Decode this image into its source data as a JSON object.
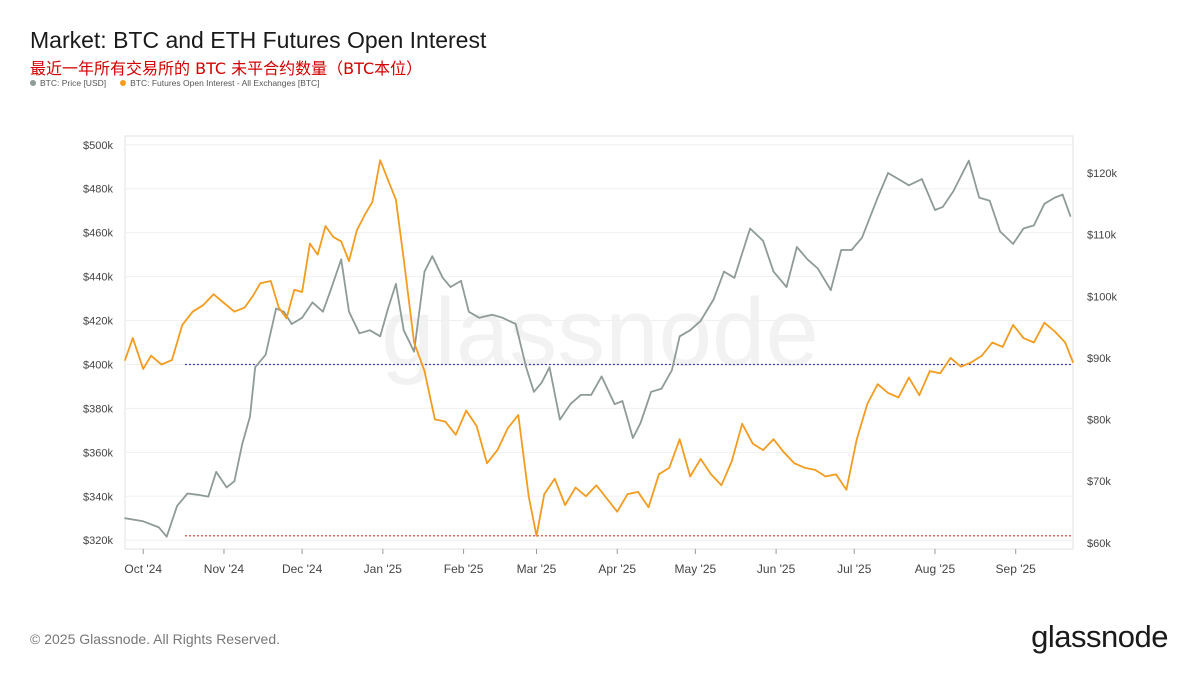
{
  "header": {
    "title": "Market: BTC and ETH Futures Open Interest",
    "subtitle": "最近一年所有交易所的 BTC 未平合约数量（BTC本位）"
  },
  "legend": [
    {
      "label": "BTC: Price [USD]",
      "color": "#8f9b98"
    },
    {
      "label": "BTC: Futures Open Interest - All Exchanges [BTC]",
      "color": "#f39c1f"
    }
  ],
  "footer": {
    "copyright": "© 2025 Glassnode. All Rights Reserved.",
    "logo": "glassnode"
  },
  "watermark": "glassnode",
  "chart_data": {
    "type": "line",
    "x_axis": {
      "ticks": [
        "Oct '24",
        "Nov '24",
        "Dec '24",
        "Jan '25",
        "Feb '25",
        "Mar '25",
        "Apr '25",
        "May '25",
        "Jun '25",
        "Jul '25",
        "Aug '25",
        "Sep '25"
      ]
    },
    "left_axis": {
      "ticks": [
        "$320k",
        "$340k",
        "$360k",
        "$380k",
        "$400k",
        "$420k",
        "$440k",
        "$460k",
        "$480k",
        "$500k"
      ],
      "range": [
        316000,
        504000
      ]
    },
    "right_axis": {
      "ticks": [
        "$60k",
        "$70k",
        "$80k",
        "$90k",
        "$100k",
        "$110k",
        "$120k"
      ],
      "range": [
        59000,
        126000
      ]
    },
    "series": [
      {
        "name": "BTC: Price [USD]",
        "axis": "right",
        "color": "#8f9b98",
        "x": [
          "2024-09-24",
          "2024-10-01",
          "2024-10-07",
          "2024-10-10",
          "2024-10-14",
          "2024-10-18",
          "2024-10-22",
          "2024-10-26",
          "2024-10-29",
          "2024-11-02",
          "2024-11-05",
          "2024-11-08",
          "2024-11-11",
          "2024-11-13",
          "2024-11-17",
          "2024-11-21",
          "2024-11-24",
          "2024-11-27",
          "2024-12-01",
          "2024-12-05",
          "2024-12-09",
          "2024-12-12",
          "2024-12-16",
          "2024-12-19",
          "2024-12-23",
          "2024-12-27",
          "2024-12-31",
          "2025-01-03",
          "2025-01-06",
          "2025-01-09",
          "2025-01-13",
          "2025-01-17",
          "2025-01-20",
          "2025-01-24",
          "2025-01-27",
          "2025-01-31",
          "2025-02-03",
          "2025-02-07",
          "2025-02-12",
          "2025-02-16",
          "2025-02-21",
          "2025-02-25",
          "2025-02-28",
          "2025-03-03",
          "2025-03-06",
          "2025-03-10",
          "2025-03-14",
          "2025-03-18",
          "2025-03-22",
          "2025-03-26",
          "2025-03-31",
          "2025-04-03",
          "2025-04-07",
          "2025-04-10",
          "2025-04-14",
          "2025-04-18",
          "2025-04-22",
          "2025-04-25",
          "2025-04-29",
          "2025-05-03",
          "2025-05-08",
          "2025-05-12",
          "2025-05-16",
          "2025-05-22",
          "2025-05-27",
          "2025-05-31",
          "2025-06-05",
          "2025-06-09",
          "2025-06-13",
          "2025-06-17",
          "2025-06-22",
          "2025-06-26",
          "2025-06-30",
          "2025-07-04",
          "2025-07-10",
          "2025-07-14",
          "2025-07-18",
          "2025-07-22",
          "2025-07-27",
          "2025-08-01",
          "2025-08-04",
          "2025-08-08",
          "2025-08-14",
          "2025-08-18",
          "2025-08-22",
          "2025-08-26",
          "2025-08-31",
          "2025-09-04",
          "2025-09-08",
          "2025-09-12",
          "2025-09-16",
          "2025-09-19",
          "2025-09-22"
        ],
        "values": [
          64000,
          63500,
          62500,
          61000,
          66000,
          68000,
          67800,
          67500,
          71500,
          69000,
          70000,
          76000,
          80500,
          88500,
          90500,
          98000,
          97500,
          95500,
          96500,
          99000,
          97500,
          101000,
          106000,
          97500,
          94000,
          94500,
          93500,
          98000,
          102000,
          94500,
          91000,
          104000,
          106500,
          103000,
          101500,
          102500,
          97500,
          96500,
          97000,
          96500,
          95500,
          88500,
          84500,
          86000,
          88500,
          80000,
          82500,
          84000,
          84000,
          87000,
          82500,
          83000,
          77000,
          79500,
          84500,
          85000,
          88000,
          93500,
          94500,
          96000,
          99500,
          104000,
          103000,
          111000,
          109000,
          104000,
          101500,
          108000,
          106000,
          104500,
          101000,
          107500,
          107500,
          109500,
          116000,
          120000,
          119000,
          118000,
          119000,
          114000,
          114500,
          117000,
          122000,
          116000,
          115500,
          110500,
          108500,
          111000,
          111500,
          115000,
          116000,
          116500,
          113000
        ]
      },
      {
        "name": "BTC: Futures Open Interest - All Exchanges [BTC]",
        "axis": "left",
        "color": "#f39c1f",
        "x": [
          "2024-09-24",
          "2024-09-27",
          "2024-10-01",
          "2024-10-04",
          "2024-10-08",
          "2024-10-12",
          "2024-10-16",
          "2024-10-20",
          "2024-10-24",
          "2024-10-28",
          "2024-11-01",
          "2024-11-05",
          "2024-11-09",
          "2024-11-12",
          "2024-11-15",
          "2024-11-19",
          "2024-11-22",
          "2024-11-25",
          "2024-11-28",
          "2024-12-01",
          "2024-12-04",
          "2024-12-07",
          "2024-12-10",
          "2024-12-13",
          "2024-12-16",
          "2024-12-19",
          "2024-12-22",
          "2024-12-25",
          "2024-12-28",
          "2024-12-31",
          "2025-01-03",
          "2025-01-06",
          "2025-01-09",
          "2025-01-13",
          "2025-01-17",
          "2025-01-21",
          "2025-01-25",
          "2025-01-29",
          "2025-02-02",
          "2025-02-06",
          "2025-02-10",
          "2025-02-14",
          "2025-02-18",
          "2025-02-22",
          "2025-02-26",
          "2025-03-01",
          "2025-03-04",
          "2025-03-08",
          "2025-03-12",
          "2025-03-16",
          "2025-03-20",
          "2025-03-24",
          "2025-03-28",
          "2025-04-01",
          "2025-04-05",
          "2025-04-09",
          "2025-04-13",
          "2025-04-17",
          "2025-04-21",
          "2025-04-25",
          "2025-04-29",
          "2025-05-03",
          "2025-05-07",
          "2025-05-11",
          "2025-05-15",
          "2025-05-19",
          "2025-05-23",
          "2025-05-27",
          "2025-05-31",
          "2025-06-04",
          "2025-06-08",
          "2025-06-12",
          "2025-06-16",
          "2025-06-20",
          "2025-06-24",
          "2025-06-28",
          "2025-07-02",
          "2025-07-06",
          "2025-07-10",
          "2025-07-14",
          "2025-07-18",
          "2025-07-22",
          "2025-07-26",
          "2025-07-30",
          "2025-08-03",
          "2025-08-07",
          "2025-08-11",
          "2025-08-15",
          "2025-08-19",
          "2025-08-23",
          "2025-08-27",
          "2025-08-31",
          "2025-09-04",
          "2025-09-08",
          "2025-09-12",
          "2025-09-16",
          "2025-09-20",
          "2025-09-23"
        ],
        "values": [
          402000,
          412000,
          398000,
          404000,
          400000,
          402000,
          418000,
          424000,
          427000,
          432000,
          428000,
          424000,
          426000,
          431000,
          437000,
          438000,
          426000,
          421000,
          434000,
          433000,
          455000,
          450000,
          463000,
          458000,
          456000,
          447000,
          461000,
          468000,
          474000,
          493000,
          484000,
          475000,
          448000,
          410000,
          397000,
          375000,
          374000,
          368000,
          379000,
          372000,
          355000,
          361000,
          371000,
          377000,
          340000,
          322000,
          341000,
          348000,
          336000,
          344000,
          340000,
          345000,
          339000,
          333000,
          341000,
          342000,
          335000,
          350000,
          353000,
          366000,
          349000,
          357000,
          350000,
          345000,
          356000,
          373000,
          364000,
          361000,
          366000,
          360000,
          355000,
          353000,
          352000,
          349000,
          350000,
          343000,
          366000,
          382000,
          391000,
          387000,
          385000,
          394000,
          386000,
          397000,
          396000,
          403000,
          399000,
          401000,
          404000,
          410000,
          408000,
          418000,
          412000,
          410000,
          419000,
          415000,
          410000,
          401000
        ]
      }
    ],
    "reference_lines": [
      {
        "axis": "left",
        "value": 400000,
        "color": "#3f3fa8",
        "style": "dotted"
      },
      {
        "axis": "left",
        "value": 322000,
        "color": "#c0392b",
        "style": "dotted"
      }
    ],
    "grid": true
  }
}
